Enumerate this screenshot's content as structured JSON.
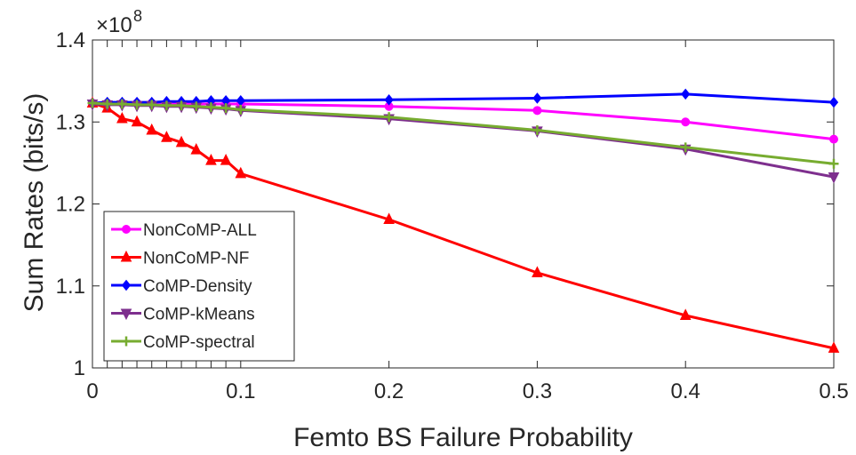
{
  "chart_data": {
    "type": "line",
    "xlabel": "Femto BS Failure Probability",
    "ylabel": "Sum Rates (bits/s)",
    "y_exponent_label": "×10",
    "y_exponent_power": "8",
    "xlim": [
      0,
      0.5
    ],
    "ylim": [
      1.0,
      1.4
    ],
    "x_ticks": [
      0,
      0.1,
      0.2,
      0.3,
      0.4,
      0.5
    ],
    "x_tick_labels": [
      "0",
      "0.1",
      "0.2",
      "0.3",
      "0.4",
      "0.5"
    ],
    "y_ticks": [
      1.0,
      1.1,
      1.2,
      1.3,
      1.4
    ],
    "y_tick_labels": [
      "1",
      "1.1",
      "1.2",
      "1.3",
      "1.4"
    ],
    "grid": false,
    "legend_position": "bottom-left",
    "x": [
      0,
      0.01,
      0.02,
      0.03,
      0.04,
      0.05,
      0.06,
      0.07,
      0.08,
      0.09,
      0.1,
      0.2,
      0.3,
      0.4,
      0.5
    ],
    "series": [
      {
        "name": "NonCoMP-ALL",
        "color": "#ff00ff",
        "marker": "circle",
        "values": [
          1.323,
          1.323,
          1.323,
          1.323,
          1.323,
          1.323,
          1.323,
          1.322,
          1.322,
          1.322,
          1.322,
          1.319,
          1.314,
          1.3,
          1.279
        ]
      },
      {
        "name": "NonCoMP-NF",
        "color": "#ff0000",
        "marker": "triangle-up",
        "values": [
          1.323,
          1.317,
          1.304,
          1.3,
          1.29,
          1.281,
          1.275,
          1.266,
          1.253,
          1.253,
          1.237,
          1.181,
          1.116,
          1.064,
          1.024
        ]
      },
      {
        "name": "CoMP-Density",
        "color": "#0000ff",
        "marker": "diamond",
        "values": [
          1.323,
          1.324,
          1.324,
          1.324,
          1.324,
          1.325,
          1.325,
          1.325,
          1.326,
          1.326,
          1.326,
          1.327,
          1.329,
          1.334,
          1.324
        ]
      },
      {
        "name": "CoMP-kMeans",
        "color": "#7e2f8e",
        "marker": "triangle-down",
        "values": [
          1.322,
          1.321,
          1.321,
          1.32,
          1.32,
          1.319,
          1.319,
          1.318,
          1.317,
          1.316,
          1.314,
          1.304,
          1.289,
          1.267,
          1.233
        ]
      },
      {
        "name": "CoMP-spectral",
        "color": "#77ac30",
        "marker": "plus",
        "values": [
          1.323,
          1.322,
          1.322,
          1.321,
          1.321,
          1.32,
          1.32,
          1.319,
          1.318,
          1.317,
          1.315,
          1.306,
          1.29,
          1.269,
          1.249
        ]
      }
    ]
  }
}
